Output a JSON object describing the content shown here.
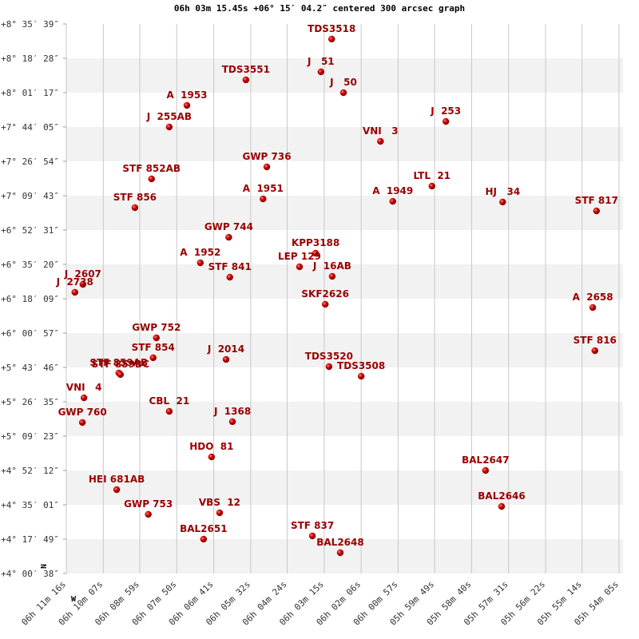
{
  "chart_data": {
    "type": "scatter",
    "title": "06h 03m 15.45s +06° 15′ 04.2″ centered 300 arcsec graph",
    "x_label": "W",
    "y_label": "N",
    "color": "#cc0000",
    "label_color": "#990000",
    "grid": true,
    "xlim": [
      22276,
      21245
    ],
    "xticks": [
      {
        "value": 22276,
        "label": "06h 11m 16s"
      },
      {
        "value": 22207,
        "label": "06h 10m 07s"
      },
      {
        "value": 22139,
        "label": "06h 08m 59s"
      },
      {
        "value": 22070,
        "label": "06h 07m 50s"
      },
      {
        "value": 22001,
        "label": "06h 06m 41s"
      },
      {
        "value": 21932,
        "label": "06h 05m 32s"
      },
      {
        "value": 21864,
        "label": "06h 04m 24s"
      },
      {
        "value": 21795,
        "label": "06h 03m 15s"
      },
      {
        "value": 21726,
        "label": "06h 02m 06s"
      },
      {
        "value": 21657,
        "label": "06h 00m 57s"
      },
      {
        "value": 21589,
        "label": "05h 59m 49s"
      },
      {
        "value": 21520,
        "label": "05h 58m 40s"
      },
      {
        "value": 21451,
        "label": "05h 57m 31s"
      },
      {
        "value": 21382,
        "label": "05h 56m 22s"
      },
      {
        "value": 21314,
        "label": "05h 55m 14s"
      },
      {
        "value": 21245,
        "label": "05h 54m 05s"
      }
    ],
    "ylim": [
      4.01056,
      8.59417
    ],
    "yticks": [
      {
        "value": 8.59417,
        "label": "+8° 35′ 39″"
      },
      {
        "value": 8.30778,
        "label": "+8° 18′ 28″"
      },
      {
        "value": 8.02139,
        "label": "+8° 01′ 17″"
      },
      {
        "value": 7.73472,
        "label": "+7° 44′ 05″"
      },
      {
        "value": 7.44833,
        "label": "+7° 26′ 54″"
      },
      {
        "value": 7.16194,
        "label": "+7° 09′ 43″"
      },
      {
        "value": 6.87528,
        "label": "+6° 52′ 31″"
      },
      {
        "value": 6.58889,
        "label": "+6° 35′ 20″"
      },
      {
        "value": 6.3025,
        "label": "+6° 18′ 09″"
      },
      {
        "value": 6.01583,
        "label": "+6° 00′ 57″"
      },
      {
        "value": 5.72944,
        "label": "+5° 43′ 46″"
      },
      {
        "value": 5.44306,
        "label": "+5° 26′ 35″"
      },
      {
        "value": 5.15639,
        "label": "+5° 09′ 23″"
      },
      {
        "value": 4.87,
        "label": "+4° 52′ 12″"
      },
      {
        "value": 4.58361,
        "label": "+4° 35′ 01″"
      },
      {
        "value": 4.29694,
        "label": "+4° 17′ 49″"
      },
      {
        "value": 4.01056,
        "label": "+4° 00′ 38″"
      }
    ],
    "labels": [
      "TDS3518",
      "J   51",
      "J   50",
      "TDS3551",
      "A  1953",
      "J  255AB",
      "J  253",
      "VNI   3",
      "GWP 736",
      "STF 852AB",
      "LTL  21",
      "A  1951",
      "A  1949",
      "HJ   34",
      "STF 856",
      "STF 817",
      "GWP 744",
      "KPP3188",
      "A  1952",
      "LEP 129",
      "J  16AB",
      "STF 841",
      "J  2607",
      "J  2738",
      "SKF2626",
      "A  2658",
      "GWP 752",
      "STF 816",
      "STF 854",
      "J  2014",
      "STF 859AB",
      "STF 859BC",
      "TDS3520",
      "TDS3508",
      "VNI   4",
      "GWP 760",
      "CBL  21",
      "J  1368",
      "HDO  81",
      "BAL2647",
      "HEI 681AB",
      "VBS  12",
      "GWP 753",
      "BAL2646",
      "BAL2651",
      "STF 837",
      "BAL2648"
    ],
    "x": [
      21781,
      21801,
      21759,
      21941,
      22051,
      22084,
      21568,
      21690,
      21902,
      22117,
      21594,
      21909,
      21667,
      21462,
      22148,
      21287,
      21973,
      21811,
      22026,
      21841,
      21780,
      21971,
      22245,
      22260,
      21793,
      21294,
      22108,
      21290,
      22114,
      21978,
      22178,
      22175,
      21786,
      21726,
      22243,
      22246,
      22084,
      21966,
      22005,
      21494,
      22182,
      21990,
      22123,
      21464,
      22020,
      21817,
      21765
    ],
    "values": [
      8.468,
      8.195,
      8.021,
      8.128,
      7.915,
      7.735,
      7.781,
      7.615,
      7.402,
      7.302,
      7.242,
      7.135,
      7.115,
      7.109,
      7.062,
      7.035,
      6.815,
      6.682,
      6.602,
      6.569,
      6.489,
      6.482,
      6.422,
      6.356,
      6.256,
      6.229,
      5.976,
      5.869,
      5.81,
      5.796,
      5.683,
      5.67,
      5.736,
      5.656,
      5.476,
      5.27,
      5.363,
      5.277,
      4.983,
      4.87,
      4.71,
      4.517,
      4.504,
      4.57,
      4.297,
      4.324,
      4.184
    ]
  }
}
